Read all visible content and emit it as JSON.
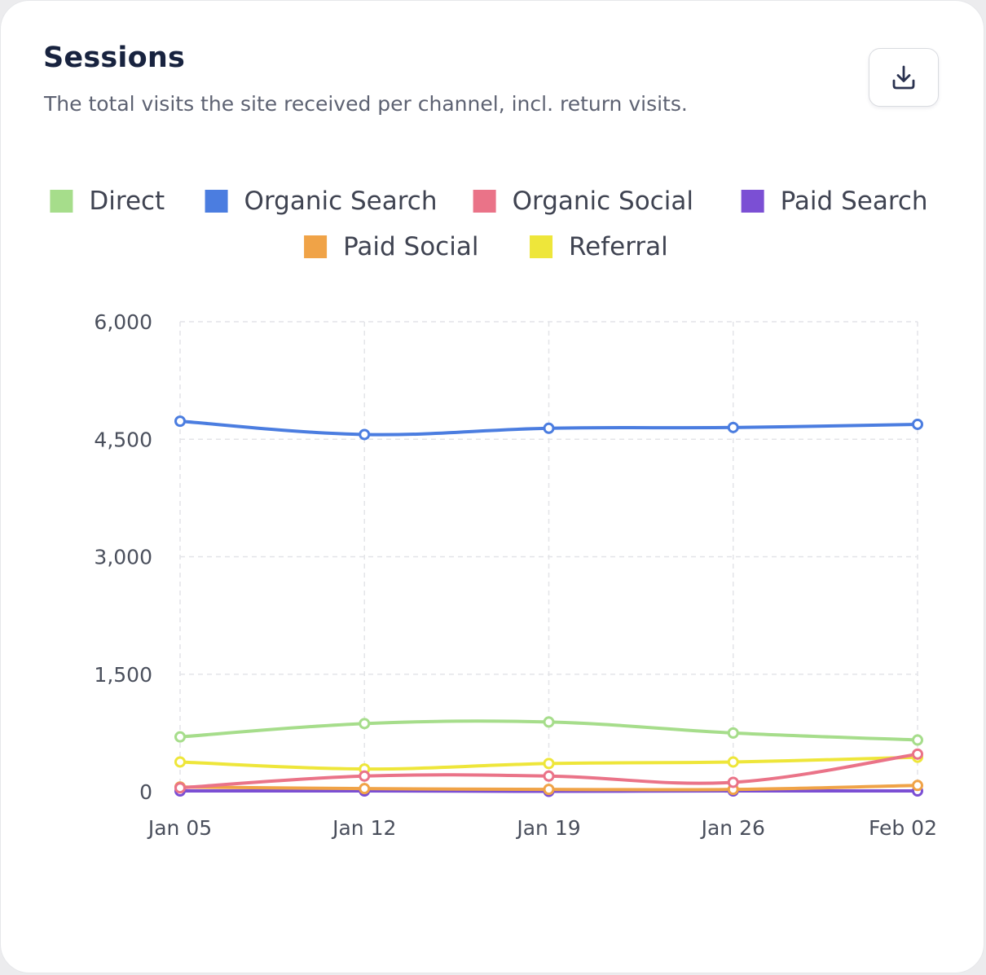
{
  "card": {
    "title": "Sessions",
    "subtitle": "The total visits the site received per channel, incl. return visits.",
    "download_icon": "download-icon"
  },
  "colors": {
    "card_background": "#ffffff",
    "title": "#18233f",
    "subtitle": "#5d6272",
    "axis_text": "#4a4f5c",
    "legend_text": "#3f4351",
    "grid": "#e3e4e8"
  },
  "chart_data": {
    "type": "line",
    "x": [
      "Jan 05",
      "Jan 12",
      "Jan 19",
      "Jan 26",
      "Feb 02"
    ],
    "ylim": [
      0,
      6000
    ],
    "yticks": [
      0,
      1500,
      3000,
      4500,
      6000
    ],
    "ytick_labels": [
      "0",
      "1,500",
      "3,000",
      "4,500",
      "6,000"
    ],
    "grid": true,
    "legend_position": "top-center",
    "series": [
      {
        "name": "Direct",
        "color": "#a6dd8b",
        "values": [
          700,
          870,
          890,
          750,
          660
        ]
      },
      {
        "name": "Organic Search",
        "color": "#4b7de0",
        "values": [
          4730,
          4560,
          4640,
          4650,
          4690
        ]
      },
      {
        "name": "Organic Social",
        "color": "#ea7388",
        "values": [
          50,
          200,
          200,
          120,
          480
        ]
      },
      {
        "name": "Paid Search",
        "color": "#7b4fd4",
        "values": [
          10,
          10,
          5,
          10,
          10
        ]
      },
      {
        "name": "Paid Social",
        "color": "#f0a347",
        "values": [
          60,
          40,
          30,
          30,
          80
        ]
      },
      {
        "name": "Referral",
        "color": "#eee63a",
        "values": [
          380,
          290,
          360,
          380,
          440
        ]
      }
    ]
  }
}
